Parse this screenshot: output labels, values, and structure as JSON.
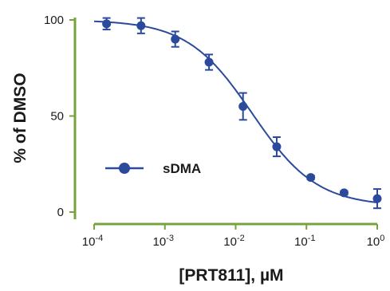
{
  "chart_data": {
    "type": "scatter",
    "title": "",
    "xlabel": "[PRT811], µM",
    "ylabel": "% of DMSO",
    "xscale": "log",
    "xlim": [
      0.0001,
      1
    ],
    "ylim": [
      0,
      100
    ],
    "x_ticks": [
      {
        "value": 0.0001,
        "label": "-4"
      },
      {
        "value": 0.001,
        "label": "-3"
      },
      {
        "value": 0.01,
        "label": "-2"
      },
      {
        "value": 0.1,
        "label": "-1"
      },
      {
        "value": 1,
        "label": "0"
      }
    ],
    "x_tick_base": "10",
    "y_ticks": [
      0,
      50,
      100
    ],
    "axis_color": "#77a33e",
    "series": [
      {
        "name": "sDMA",
        "color": "#2b4a9c",
        "x": [
          0.00015,
          0.00046,
          0.0014,
          0.0042,
          0.0127,
          0.038,
          0.115,
          0.34,
          1.0
        ],
        "y": [
          98,
          97,
          90,
          78,
          55,
          34,
          18,
          10,
          7
        ],
        "err": [
          3,
          4,
          4,
          4,
          7,
          5,
          1,
          1,
          5
        ],
        "fit": {
          "top": 100,
          "bottom": 3,
          "ic50": 0.017,
          "hill": 0.95
        }
      }
    ],
    "legend": {
      "position": "center-left",
      "label": "sDMA"
    }
  }
}
